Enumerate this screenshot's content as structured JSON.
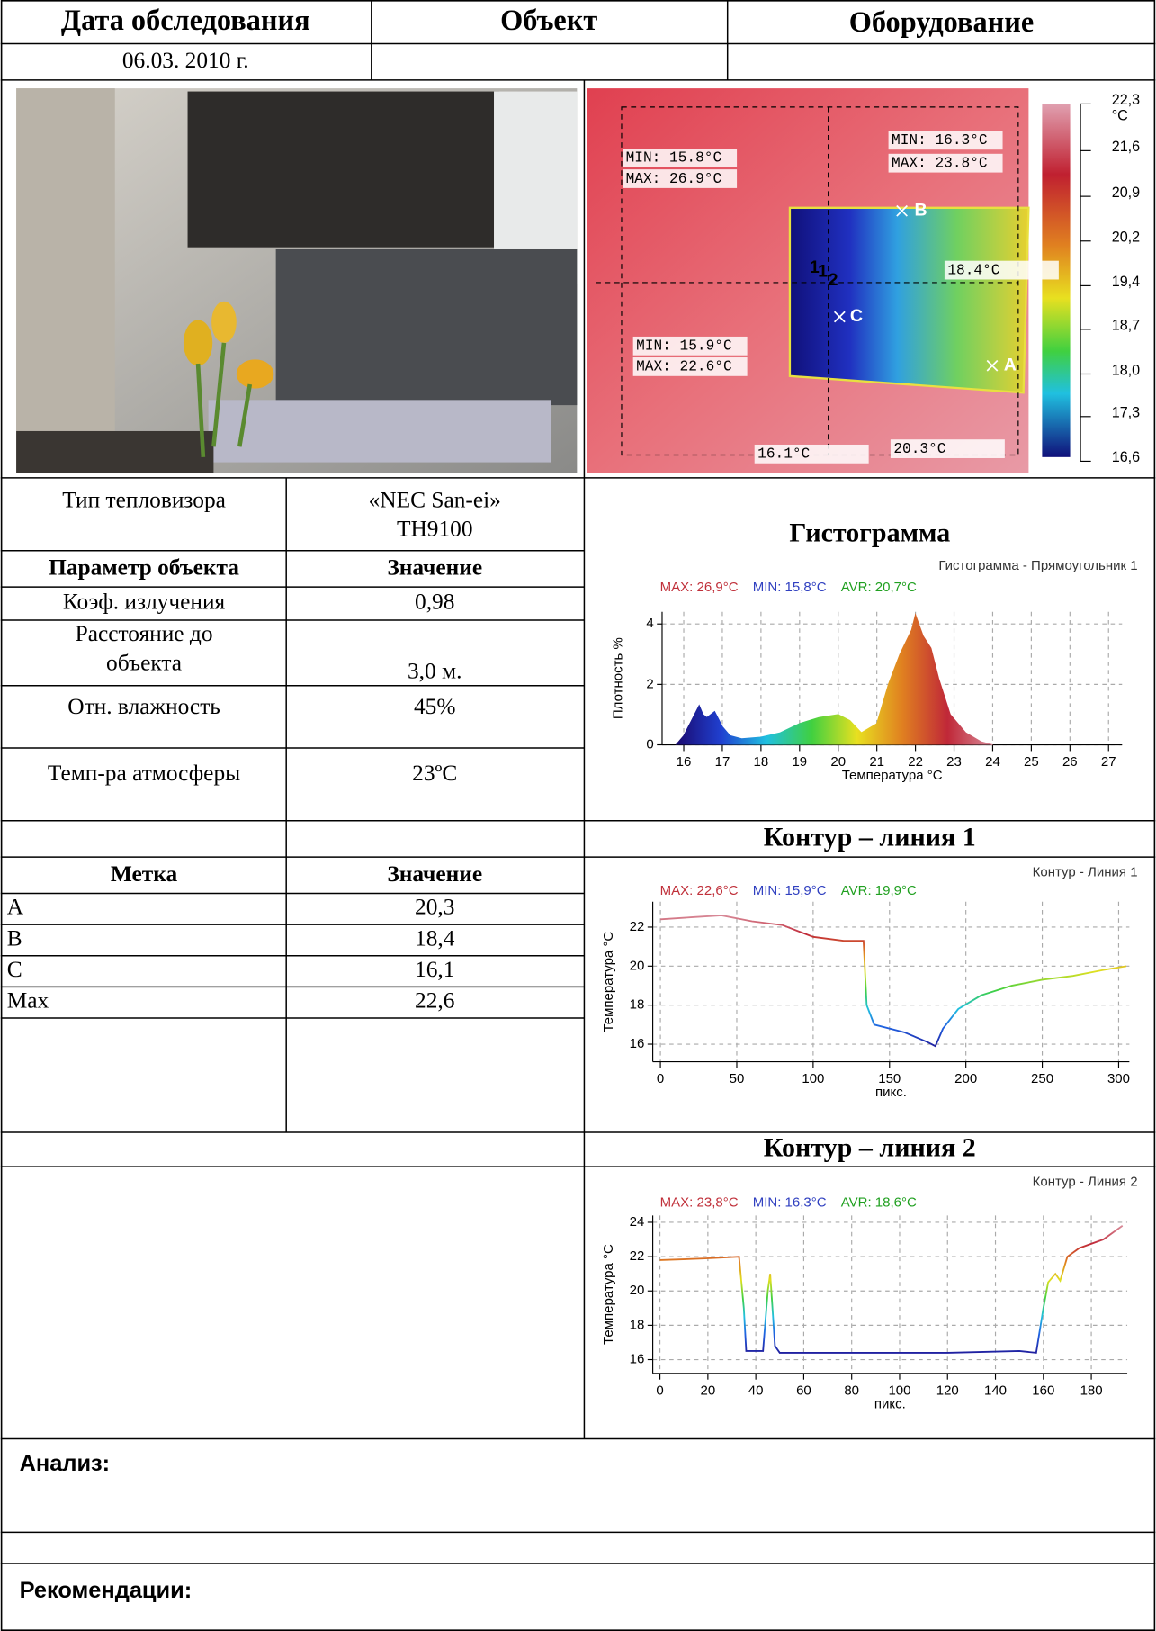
{
  "header": {
    "date_label": "Дата обследования",
    "object_label": "Объект",
    "equipment_label": "Оборудование",
    "date": "06.03. 2010 г."
  },
  "thermogram": {
    "annotations": [
      "MIN: 15.8°C",
      "MAX: 26.9°C",
      "MIN: 16.3°C",
      "MAX: 23.8°C",
      "18.4°C",
      "MIN: 15.9°C",
      "MAX: 22.6°C",
      "16.1°C",
      "20.3°C",
      "B",
      "C",
      "A",
      "1",
      "1",
      "2"
    ],
    "scale": [
      "22,3",
      "°C",
      "21,6",
      "20,9",
      "20,2",
      "19,4",
      "18,7",
      "18,0",
      "17,3",
      "16,6"
    ]
  },
  "device": {
    "label": "Тип тепловизора",
    "value": [
      "«NEC San-ei»",
      "TH9100"
    ]
  },
  "parameters": {
    "header": [
      "Параметр объекта",
      "Значение"
    ],
    "rows": [
      {
        "label": [
          "Коэф. излучения"
        ],
        "value": "0,98"
      },
      {
        "label": [
          "Расстояние до",
          "объекта"
        ],
        "value": "3,0 м."
      },
      {
        "label": [
          "Отн. влажность"
        ],
        "value": "45%"
      },
      {
        "label": [
          "Темп-ра атмосферы"
        ],
        "value": "23ºC"
      }
    ]
  },
  "markers": {
    "header": [
      "Метка",
      "Значение"
    ],
    "rows": [
      [
        "A",
        "20,3"
      ],
      [
        "B",
        "18,4"
      ],
      [
        "C",
        "16,1"
      ],
      [
        "Max",
        "22,6"
      ]
    ]
  },
  "sections": {
    "histogram": "Гистограмма",
    "line1": "Контур – линия 1",
    "line2": "Контур – линия 2",
    "analysis": "Анализ:",
    "recommendations": "Рекомендации:"
  },
  "chart_data": [
    {
      "type": "area",
      "title": "Гистограмма - Прямоугольник 1",
      "stats": [
        {
          "text": "MAX: 26,9°C",
          "color": "#c0303a"
        },
        {
          "text": "MIN: 15,8°C",
          "color": "#3040c0"
        },
        {
          "text": "AVR: 20,7°C",
          "color": "#20a020"
        }
      ],
      "x": [
        15.8,
        16.0,
        16.2,
        16.4,
        16.5,
        16.6,
        16.8,
        17.0,
        17.2,
        17.5,
        18.0,
        18.5,
        19.0,
        19.5,
        20.0,
        20.3,
        20.6,
        21.0,
        21.3,
        21.6,
        21.9,
        22.0,
        22.2,
        22.4,
        22.6,
        22.9,
        23.3,
        23.7,
        24.0
      ],
      "values": [
        0,
        0.3,
        0.8,
        1.3,
        1.0,
        0.9,
        1.1,
        0.6,
        0.3,
        0.2,
        0.25,
        0.4,
        0.7,
        0.9,
        1.0,
        0.8,
        0.4,
        0.7,
        2.0,
        3.0,
        3.8,
        4.3,
        3.6,
        3.2,
        2.2,
        1.0,
        0.4,
        0.1,
        0
      ],
      "xlim": [
        15.44,
        27.35
      ],
      "ylim": [
        0,
        4.4
      ],
      "xticks": [
        16,
        17,
        18,
        19,
        20,
        21,
        22,
        23,
        24,
        25,
        26,
        27
      ],
      "yticks": [
        0,
        2,
        4
      ],
      "xlabel": "Температура °C",
      "ylabel": "Плотность %",
      "grid": true,
      "colors": [
        "#1a0a70",
        "#2040d0",
        "#20c0e0",
        "#40d040",
        "#e8e020",
        "#e08020",
        "#c02838",
        "#d88a98"
      ]
    },
    {
      "type": "line",
      "title": "Контур - Линия 1",
      "stats": [
        {
          "text": "MAX: 22,6°C",
          "color": "#c0303a"
        },
        {
          "text": "MIN: 15,9°C",
          "color": "#3040c0"
        },
        {
          "text": "AVR: 19,9°C",
          "color": "#20a020"
        }
      ],
      "x": [
        0,
        20,
        40,
        60,
        80,
        90,
        100,
        120,
        133,
        135,
        140,
        160,
        175,
        180,
        185,
        195,
        210,
        230,
        250,
        270,
        290,
        305
      ],
      "values": [
        22.4,
        22.5,
        22.6,
        22.3,
        22.1,
        21.8,
        21.5,
        21.3,
        21.3,
        18,
        17.0,
        16.6,
        16.1,
        15.9,
        16.8,
        17.8,
        18.5,
        19.0,
        19.3,
        19.5,
        19.8,
        20.0
      ],
      "xlim": [
        -5,
        307
      ],
      "ylim": [
        15.1,
        23.3
      ],
      "xticks": [
        0,
        50,
        100,
        150,
        200,
        250,
        300
      ],
      "yticks": [
        16,
        18,
        20,
        22
      ],
      "xlabel": "пикс.",
      "ylabel": "Температура °C",
      "grid": true,
      "colors": [
        "#2020a0",
        "#2060e0",
        "#20c0e0",
        "#40d040",
        "#e0e020",
        "#e08020",
        "#c02838",
        "#d88a98"
      ]
    },
    {
      "type": "line",
      "title": "Контур - Линия 2",
      "stats": [
        {
          "text": "MAX: 23,8°C",
          "color": "#c0303a"
        },
        {
          "text": "MIN: 16,3°C",
          "color": "#3040c0"
        },
        {
          "text": "AVR: 18,6°C",
          "color": "#20a020"
        }
      ],
      "x": [
        0,
        20,
        33,
        35,
        36,
        40,
        43,
        45,
        46,
        48,
        50,
        80,
        120,
        150,
        157,
        160,
        162,
        165,
        167,
        170,
        175,
        185,
        193
      ],
      "values": [
        21.8,
        21.9,
        22.0,
        19,
        16.5,
        16.5,
        16.5,
        20,
        21,
        16.8,
        16.4,
        16.4,
        16.4,
        16.5,
        16.4,
        19,
        20.5,
        21,
        20.6,
        22,
        22.5,
        23,
        23.8
      ],
      "xlim": [
        -3,
        195
      ],
      "ylim": [
        15.2,
        24.4
      ],
      "xticks": [
        0,
        20,
        40,
        60,
        80,
        100,
        120,
        140,
        160,
        180
      ],
      "yticks": [
        16,
        18,
        20,
        22,
        24
      ],
      "xlabel": "пикс.",
      "ylabel": "Температура °C",
      "grid": true,
      "colors": [
        "#2020a0",
        "#2060e0",
        "#20c0e0",
        "#40d040",
        "#e0e020",
        "#e08020",
        "#c02838",
        "#d88a98"
      ]
    }
  ]
}
